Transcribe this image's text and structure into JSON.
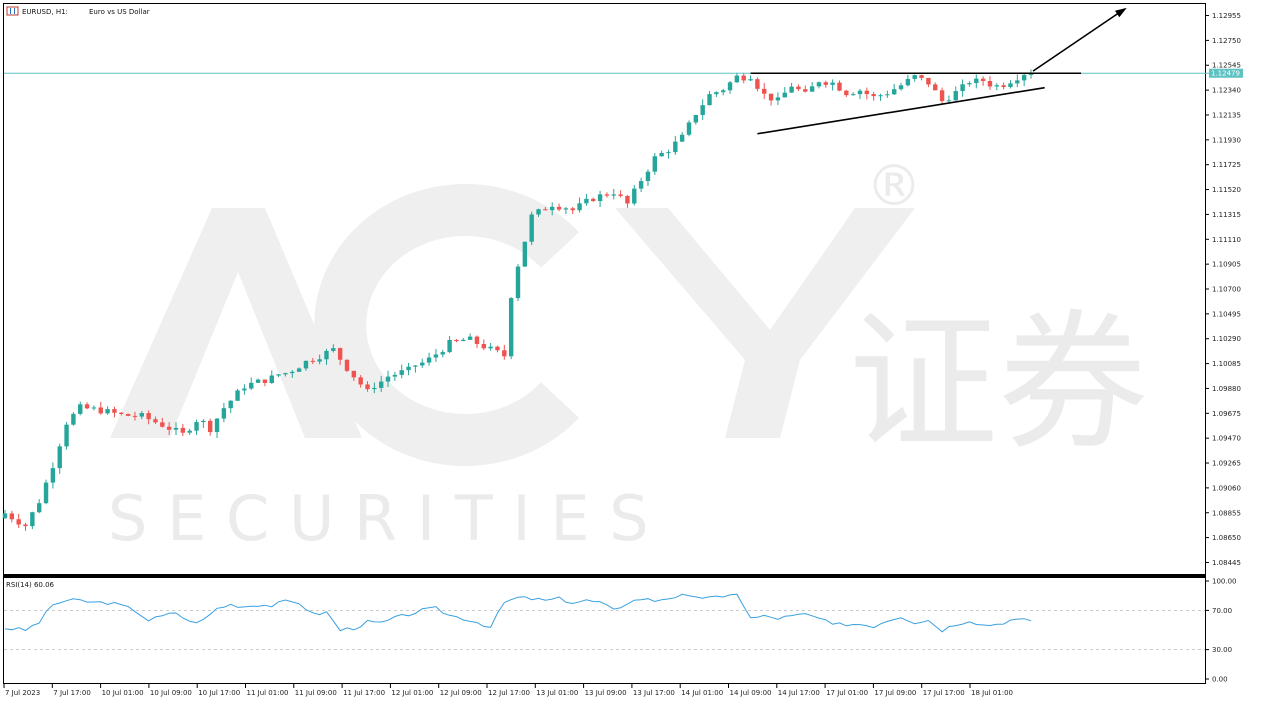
{
  "header": {
    "symbol": "EURUSD, H1:",
    "description": "Euro vs US Dollar"
  },
  "watermark": {
    "logo": "ACY",
    "registered": "®",
    "cjk": "证券",
    "tagline": "S E C U R I T I E S"
  },
  "colors": {
    "up": "#26a69a",
    "down": "#ef5350",
    "price_line": "#5fc2c2",
    "rsi": "#3aa0e0",
    "trend": "#000000"
  },
  "current_price": "1.12479",
  "rsi_panel": {
    "label": "RSI(14) 60.06",
    "ticks": [
      "100.00",
      "70.00",
      "30.00",
      "0.00"
    ]
  },
  "chart_data": [
    {
      "type": "candlestick",
      "title": "EURUSD, H1: Euro vs US Dollar",
      "ylim": [
        1.0835,
        1.1305
      ],
      "y_ticks": [
        "1.12955",
        "1.12750",
        "1.12545",
        "1.12340",
        "1.12135",
        "1.11930",
        "1.11725",
        "1.11520",
        "1.11315",
        "1.11110",
        "1.10905",
        "1.10700",
        "1.10495",
        "1.10290",
        "1.10085",
        "1.09880",
        "1.09675",
        "1.09470",
        "1.09265",
        "1.09060",
        "1.08855",
        "1.08650",
        "1.08445"
      ],
      "x_ticks": [
        "7 Jul 2023",
        "7 Jul 17:00",
        "10 Jul 01:00",
        "10 Jul 09:00",
        "10 Jul 17:00",
        "11 Jul 01:00",
        "11 Jul 09:00",
        "11 Jul 17:00",
        "12 Jul 01:00",
        "12 Jul 09:00",
        "12 Jul 17:00",
        "13 Jul 01:00",
        "13 Jul 09:00",
        "13 Jul 17:00",
        "14 Jul 01:00",
        "14 Jul 09:00",
        "14 Jul 17:00",
        "17 Jul 01:00",
        "17 Jul 09:00",
        "17 Jul 17:00",
        "18 Jul 01:00"
      ],
      "close_anchors": [
        [
          0,
          1.0885
        ],
        [
          3,
          1.0875
        ],
        [
          5,
          1.0895
        ],
        [
          7,
          1.0925
        ],
        [
          9,
          1.096
        ],
        [
          11,
          1.0972
        ],
        [
          14,
          1.097
        ],
        [
          17,
          1.0966
        ],
        [
          20,
          1.0965
        ],
        [
          23,
          1.0958
        ],
        [
          26,
          1.095
        ],
        [
          28,
          1.0962
        ],
        [
          30,
          1.0955
        ],
        [
          32,
          1.0972
        ],
        [
          35,
          1.099
        ],
        [
          38,
          1.0995
        ],
        [
          41,
          1.1
        ],
        [
          44,
          1.101
        ],
        [
          46,
          1.1015
        ],
        [
          48,
          1.102
        ],
        [
          50,
          1.1005
        ],
        [
          53,
          1.0985
        ],
        [
          56,
          1.0998
        ],
        [
          59,
          1.1003
        ],
        [
          62,
          1.1012
        ],
        [
          65,
          1.1025
        ],
        [
          68,
          1.1028
        ],
        [
          71,
          1.102
        ],
        [
          73,
          1.1015
        ],
        [
          74,
          1.1065
        ],
        [
          75,
          1.109
        ],
        [
          77,
          1.113
        ],
        [
          80,
          1.114
        ],
        [
          83,
          1.1135
        ],
        [
          86,
          1.1145
        ],
        [
          89,
          1.115
        ],
        [
          91,
          1.114
        ],
        [
          93,
          1.116
        ],
        [
          95,
          1.1178
        ],
        [
          97,
          1.1185
        ],
        [
          99,
          1.1195
        ],
        [
          101,
          1.1215
        ],
        [
          103,
          1.123
        ],
        [
          105,
          1.1235
        ],
        [
          107,
          1.1245
        ],
        [
          109,
          1.1245
        ],
        [
          111,
          1.123
        ],
        [
          113,
          1.1225
        ],
        [
          115,
          1.1238
        ],
        [
          117,
          1.123
        ],
        [
          119,
          1.1242
        ],
        [
          121,
          1.124
        ],
        [
          123,
          1.1232
        ],
        [
          125,
          1.1234
        ],
        [
          127,
          1.1228
        ],
        [
          129,
          1.1232
        ],
        [
          131,
          1.1238
        ],
        [
          133,
          1.1245
        ],
        [
          135,
          1.124
        ],
        [
          137,
          1.1225
        ],
        [
          139,
          1.1232
        ],
        [
          141,
          1.124
        ],
        [
          143,
          1.1242
        ],
        [
          145,
          1.1236
        ],
        [
          147,
          1.1242
        ],
        [
          149,
          1.1248
        ],
        [
          150,
          1.1248
        ]
      ],
      "horizontal_line": 1.12479,
      "trendlines": [
        {
          "name": "resistance",
          "from": [
            109,
            1.12479
          ],
          "to": [
            150,
            1.12479
          ],
          "extend": true
        },
        {
          "name": "support",
          "from": [
            110,
            1.1198
          ],
          "to": [
            152,
            1.1236
          ]
        }
      ],
      "arrow": {
        "from": [
          150,
          1.1248
        ],
        "to": [
          164,
          1.1301
        ]
      }
    },
    {
      "type": "line",
      "title": "RSI(14) 60.06",
      "ylim": [
        0,
        100
      ],
      "levels": [
        70,
        30
      ],
      "anchors": [
        [
          0,
          52
        ],
        [
          3,
          50
        ],
        [
          5,
          58
        ],
        [
          7,
          76
        ],
        [
          9,
          80
        ],
        [
          11,
          80
        ],
        [
          13,
          78
        ],
        [
          15,
          78
        ],
        [
          17,
          75
        ],
        [
          19,
          70
        ],
        [
          21,
          60
        ],
        [
          23,
          64
        ],
        [
          25,
          68
        ],
        [
          27,
          58
        ],
        [
          29,
          60
        ],
        [
          31,
          72
        ],
        [
          33,
          76
        ],
        [
          35,
          74
        ],
        [
          37,
          76
        ],
        [
          39,
          75
        ],
        [
          41,
          79
        ],
        [
          43,
          78
        ],
        [
          45,
          66
        ],
        [
          47,
          68
        ],
        [
          49,
          50
        ],
        [
          51,
          52
        ],
        [
          53,
          58
        ],
        [
          55,
          57
        ],
        [
          57,
          62
        ],
        [
          59,
          66
        ],
        [
          61,
          70
        ],
        [
          63,
          72
        ],
        [
          65,
          65
        ],
        [
          67,
          62
        ],
        [
          69,
          58
        ],
        [
          71,
          53
        ],
        [
          73,
          78
        ],
        [
          75,
          83
        ],
        [
          77,
          82
        ],
        [
          79,
          80
        ],
        [
          81,
          82
        ],
        [
          83,
          78
        ],
        [
          85,
          80
        ],
        [
          87,
          78
        ],
        [
          89,
          70
        ],
        [
          91,
          78
        ],
        [
          93,
          82
        ],
        [
          95,
          80
        ],
        [
          97,
          83
        ],
        [
          99,
          85
        ],
        [
          101,
          82
        ],
        [
          103,
          85
        ],
        [
          105,
          82
        ],
        [
          107,
          88
        ],
        [
          109,
          62
        ],
        [
          111,
          64
        ],
        [
          113,
          62
        ],
        [
          115,
          64
        ],
        [
          117,
          66
        ],
        [
          119,
          62
        ],
        [
          121,
          55
        ],
        [
          123,
          56
        ],
        [
          125,
          56
        ],
        [
          127,
          54
        ],
        [
          129,
          60
        ],
        [
          131,
          64
        ],
        [
          133,
          58
        ],
        [
          135,
          60
        ],
        [
          137,
          50
        ],
        [
          139,
          56
        ],
        [
          141,
          60
        ],
        [
          143,
          55
        ],
        [
          145,
          56
        ],
        [
          147,
          60
        ],
        [
          149,
          60
        ],
        [
          150,
          60
        ]
      ]
    }
  ]
}
